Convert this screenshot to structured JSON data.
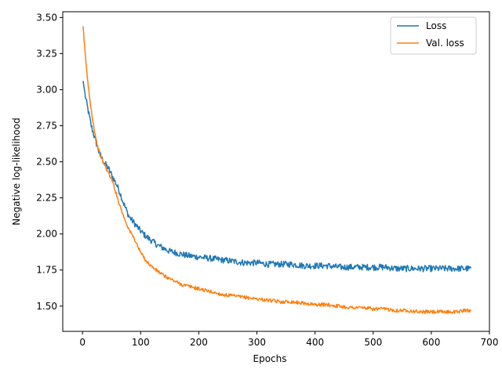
{
  "chart_data": {
    "type": "line",
    "title": "",
    "xlabel": "Epochs",
    "ylabel": "Negative log-likelihood",
    "xlim": [
      -34,
      700
    ],
    "ylim": [
      1.325,
      3.54
    ],
    "xticks": [
      0,
      100,
      200,
      300,
      400,
      500,
      600,
      700
    ],
    "yticks": [
      1.5,
      1.75,
      2.0,
      2.25,
      2.5,
      2.75,
      3.0,
      3.25,
      3.5
    ],
    "grid": false,
    "legend": "top-right",
    "series": [
      {
        "name": "Loss",
        "color": "#1f77b4",
        "x": [
          1,
          5,
          10,
          15,
          20,
          25,
          30,
          35,
          40,
          45,
          50,
          55,
          60,
          65,
          70,
          75,
          80,
          90,
          100,
          110,
          120,
          130,
          140,
          150,
          160,
          170,
          180,
          200,
          220,
          240,
          260,
          280,
          300,
          320,
          340,
          360,
          380,
          400,
          420,
          440,
          460,
          480,
          500,
          520,
          540,
          560,
          580,
          600,
          620,
          640,
          660,
          668
        ],
        "y": [
          3.06,
          2.95,
          2.85,
          2.75,
          2.68,
          2.61,
          2.55,
          2.51,
          2.48,
          2.45,
          2.41,
          2.37,
          2.33,
          2.28,
          2.22,
          2.17,
          2.12,
          2.07,
          2.02,
          1.98,
          1.95,
          1.92,
          1.9,
          1.88,
          1.87,
          1.86,
          1.85,
          1.84,
          1.83,
          1.82,
          1.81,
          1.8,
          1.8,
          1.79,
          1.79,
          1.79,
          1.78,
          1.78,
          1.78,
          1.77,
          1.77,
          1.77,
          1.77,
          1.77,
          1.76,
          1.76,
          1.76,
          1.76,
          1.76,
          1.76,
          1.76,
          1.76
        ],
        "noise": 0.022
      },
      {
        "name": "Val. loss",
        "color": "#ff7f0e",
        "x": [
          1,
          5,
          10,
          15,
          20,
          25,
          30,
          35,
          40,
          45,
          50,
          55,
          60,
          65,
          70,
          75,
          80,
          90,
          100,
          110,
          120,
          130,
          140,
          150,
          160,
          170,
          180,
          200,
          220,
          240,
          260,
          280,
          300,
          320,
          340,
          360,
          380,
          400,
          420,
          440,
          460,
          480,
          500,
          520,
          540,
          560,
          580,
          600,
          620,
          640,
          660,
          668
        ],
        "y": [
          3.44,
          3.22,
          3.02,
          2.86,
          2.73,
          2.62,
          2.55,
          2.5,
          2.46,
          2.42,
          2.38,
          2.32,
          2.25,
          2.19,
          2.13,
          2.08,
          2.03,
          1.96,
          1.87,
          1.81,
          1.77,
          1.74,
          1.71,
          1.69,
          1.67,
          1.65,
          1.64,
          1.62,
          1.6,
          1.58,
          1.57,
          1.56,
          1.55,
          1.54,
          1.53,
          1.53,
          1.52,
          1.51,
          1.51,
          1.5,
          1.49,
          1.49,
          1.48,
          1.48,
          1.47,
          1.47,
          1.46,
          1.46,
          1.46,
          1.46,
          1.47,
          1.47
        ],
        "noise": 0.012
      }
    ]
  }
}
